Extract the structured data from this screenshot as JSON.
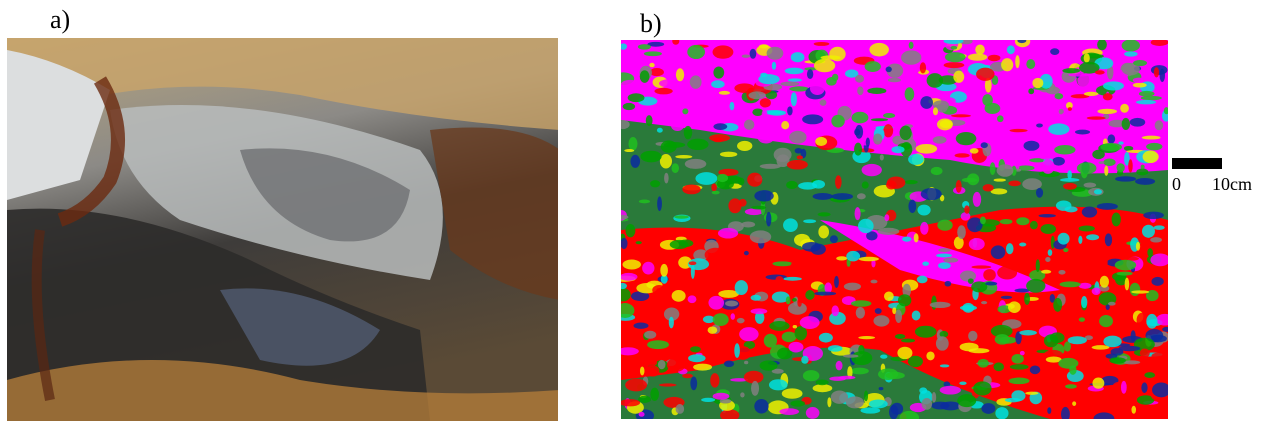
{
  "panels": [
    {
      "label": "a)"
    },
    {
      "label": "b)"
    }
  ],
  "scale_bar": {
    "start": "0",
    "end": "10cm"
  }
}
